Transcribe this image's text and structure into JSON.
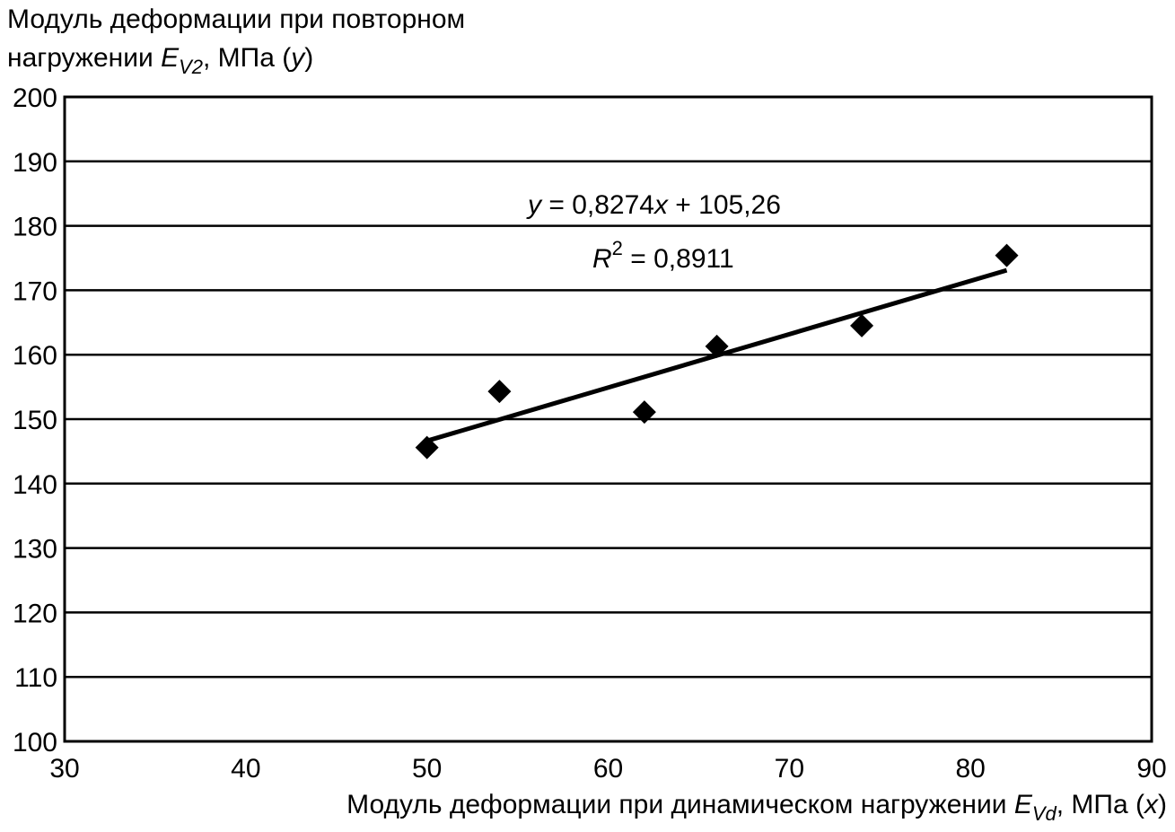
{
  "chart_data": {
    "type": "scatter",
    "ylabel": {
      "line1": "Модуль деформации при повторном",
      "line2_prefix": "нагружении ",
      "line2_var": "E",
      "line2_sub": "V2",
      "line2_suffix": ", МПа (",
      "line2_paren_var": "y",
      "line2_close": ")"
    },
    "xlabel": {
      "prefix": "Модуль деформации при динамическом нагружении ",
      "var": "E",
      "sub": "Vd",
      "suffix": ", МПа (",
      "paren_var": "x",
      "close": ")"
    },
    "xlim": [
      30,
      90
    ],
    "ylim": [
      100,
      200
    ],
    "xticks": [
      30,
      40,
      50,
      60,
      70,
      80,
      90
    ],
    "yticks": [
      100,
      110,
      120,
      130,
      140,
      150,
      160,
      170,
      180,
      190,
      200
    ],
    "grid": "horizontal",
    "marker": "diamond",
    "points": [
      {
        "x": 50,
        "y": 145.6
      },
      {
        "x": 54,
        "y": 154.3
      },
      {
        "x": 62,
        "y": 151.1
      },
      {
        "x": 66,
        "y": 161.3
      },
      {
        "x": 74,
        "y": 164.5
      },
      {
        "x": 82,
        "y": 175.4
      }
    ],
    "trendline": {
      "slope": 0.8274,
      "intercept": 105.26,
      "x_range": [
        50,
        82
      ],
      "equation_var_y": "y",
      "equation_mid": " = 0,8274",
      "equation_var_x": "x",
      "equation_end": " + 105,26",
      "r2_var": "R",
      "r2_exp": "2",
      "r2_value": " = 0,8911"
    }
  }
}
